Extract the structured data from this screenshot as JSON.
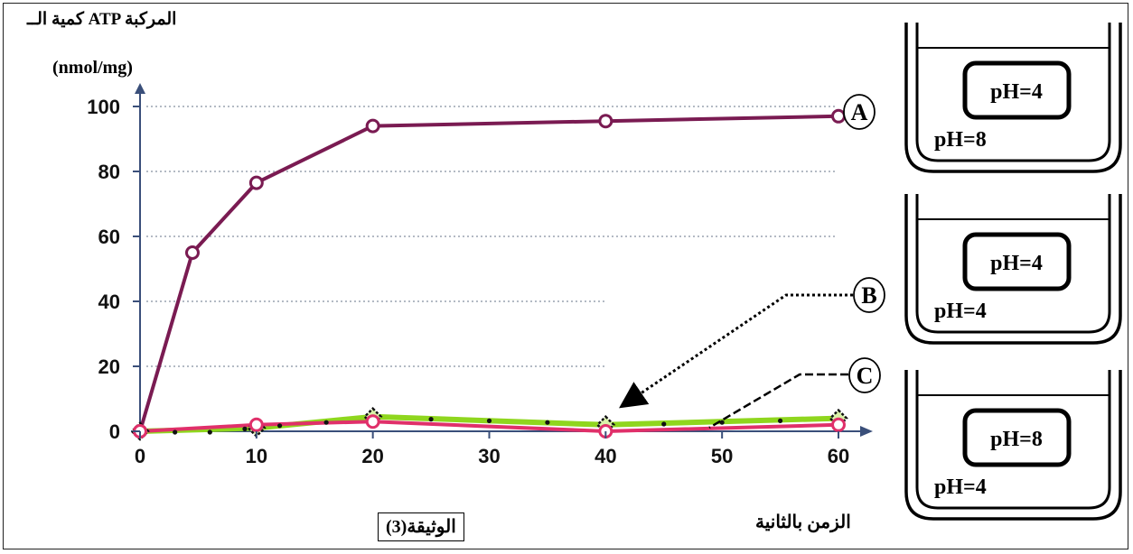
{
  "chart_data": {
    "type": "line",
    "ylabel_line1": "كمية الــ ATP المركبة",
    "ylabel_line2": "(nmol/mg)",
    "xlabel": "الزمن بالثانية",
    "x_ticks": [
      0,
      10,
      20,
      30,
      40,
      50,
      60
    ],
    "y_ticks": [
      0,
      20,
      40,
      60,
      80,
      100
    ],
    "xlim": [
      0,
      60
    ],
    "ylim": [
      0,
      100
    ],
    "grid": "dotted horizontal",
    "series": [
      {
        "name": "A",
        "color": "#7a1b52",
        "marker": "open-circle",
        "points": [
          [
            0,
            0
          ],
          [
            4.5,
            55
          ],
          [
            10,
            76.5
          ],
          [
            20,
            94
          ],
          [
            40,
            95.5
          ],
          [
            60,
            97
          ]
        ]
      },
      {
        "name": "B",
        "color": "#8fd61e",
        "marker": "diamond",
        "points": [
          [
            0,
            0
          ],
          [
            10,
            1
          ],
          [
            20,
            4.5
          ],
          [
            40,
            2
          ],
          [
            60,
            4
          ]
        ]
      },
      {
        "name": "C",
        "color": "#e0306a",
        "marker": "open-circle",
        "points": [
          [
            0,
            0
          ],
          [
            10,
            2
          ],
          [
            20,
            3
          ],
          [
            40,
            0
          ],
          [
            60,
            2
          ]
        ]
      }
    ],
    "dotted_series_points": [
      [
        0,
        0
      ],
      [
        3,
        0
      ],
      [
        6,
        0
      ],
      [
        9,
        1
      ],
      [
        12,
        2
      ],
      [
        16,
        3
      ],
      [
        20,
        4
      ],
      [
        25,
        4
      ],
      [
        30,
        3.5
      ],
      [
        35,
        3
      ],
      [
        40,
        2.5
      ],
      [
        45,
        2.5
      ],
      [
        50,
        3
      ],
      [
        55,
        3.5
      ],
      [
        60,
        4
      ]
    ]
  },
  "document_label": "الوثيقة(3)",
  "beakers": [
    {
      "label": "A",
      "inner": "pH=4",
      "outer": "pH=8"
    },
    {
      "label": "B",
      "inner": "pH=4",
      "outer": "pH=4"
    },
    {
      "label": "C",
      "inner": "pH=8",
      "outer": "pH=4"
    }
  ],
  "colors": {
    "axis": "#3a4f7a",
    "grid": "#9aa3b0",
    "text": "#000000"
  }
}
